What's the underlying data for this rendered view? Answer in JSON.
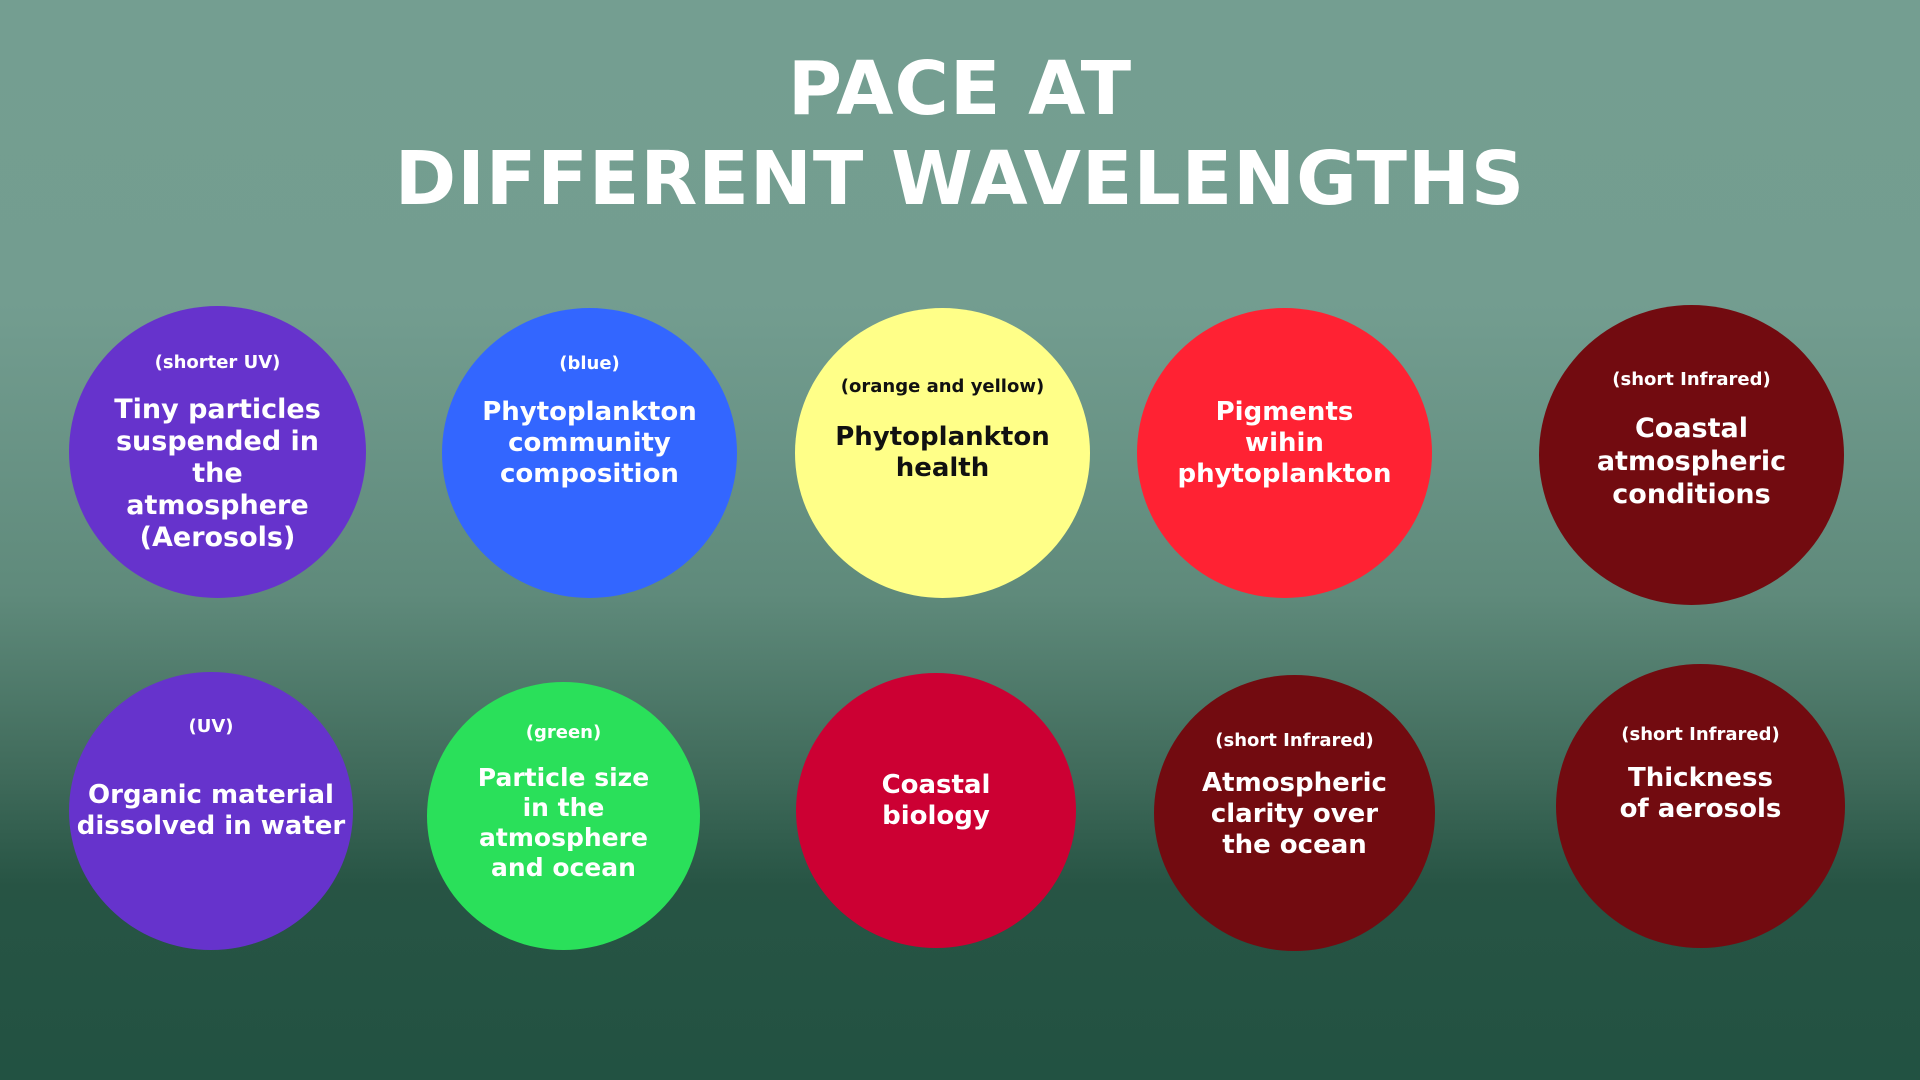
{
  "title": {
    "line1": "PACE AT",
    "line2": "DIFFERENT WAVELENGTHS"
  },
  "colors": {
    "background_top": "#749e91",
    "background_bottom": "#225242",
    "uv_purple": "#6633cc",
    "blue": "#3366ff",
    "yellow": "#ffff88",
    "red": "#ff2233",
    "crimson": "#cc0033",
    "green": "#2ae05a",
    "dark_red": "#720b10"
  },
  "bubbles": [
    {
      "tag": "(shorter UV)",
      "text": "Tiny particles\nsuspended in the\natmosphere\n(Aerosols)",
      "color": "#6633cc"
    },
    {
      "tag": "(blue)",
      "text": "Phytoplankton\ncommunity\ncomposition",
      "color": "#3366ff"
    },
    {
      "tag": "(orange and yellow)",
      "text": "Phytoplankton\nhealth",
      "color": "#ffff88"
    },
    {
      "tag": "",
      "text": "Pigments\nwihin\nphytoplankton",
      "color": "#ff2233"
    },
    {
      "tag": "(short Infrared)",
      "text": "Coastal\natmospheric\nconditions",
      "color": "#720b10"
    },
    {
      "tag": "(UV)",
      "text": "Organic material\ndissolved in water",
      "color": "#6633cc"
    },
    {
      "tag": "(green)",
      "text": "Particle size\nin the\natmosphere\nand ocean",
      "color": "#2ae05a"
    },
    {
      "tag": "",
      "text": "Coastal\nbiology",
      "color": "#cc0033"
    },
    {
      "tag": "(short Infrared)",
      "text": "Atmospheric\nclarity over\nthe ocean",
      "color": "#720b10"
    },
    {
      "tag": "(short Infrared)",
      "text": "Thickness\nof aerosols",
      "color": "#720b10"
    }
  ]
}
